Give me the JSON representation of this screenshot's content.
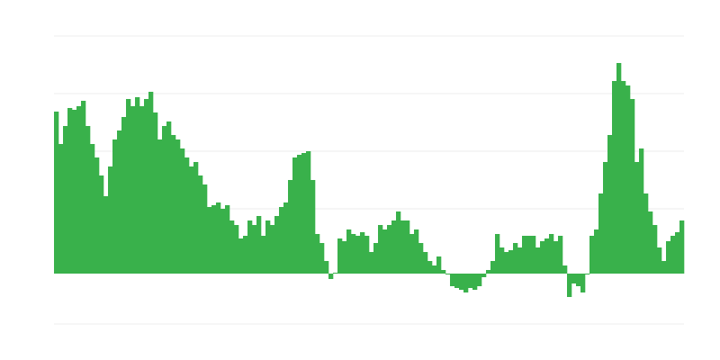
{
  "chart_data": {
    "type": "bar",
    "title": "",
    "xlabel": "",
    "ylabel": "",
    "ylim": [
      -56,
      264
    ],
    "grid": true,
    "gridlines": [
      -56,
      -8,
      8,
      72,
      136,
      200,
      264
    ],
    "legend": "none",
    "colors": {
      "bar": "#39b14b",
      "grid": "#ececec"
    },
    "values": [
      180,
      144,
      164,
      184,
      182,
      186,
      192,
      164,
      144,
      129,
      109,
      86,
      119,
      149,
      159,
      174,
      194,
      186,
      196,
      186,
      194,
      202,
      179,
      149,
      164,
      169,
      154,
      149,
      139,
      129,
      119,
      124,
      109,
      99,
      74,
      76,
      79,
      72,
      76,
      59,
      54,
      39,
      42,
      59,
      54,
      64,
      42,
      59,
      54,
      64,
      74,
      79,
      104,
      129,
      132,
      134,
      136,
      104,
      44,
      34,
      14,
      -6,
      1,
      39,
      36,
      49,
      44,
      42,
      46,
      42,
      24,
      34,
      54,
      49,
      54,
      59,
      69,
      59,
      59,
      44,
      49,
      34,
      24,
      14,
      9,
      19,
      4,
      -1,
      -14,
      -16,
      -18,
      -21,
      -16,
      -18,
      -14,
      -4,
      4,
      14,
      44,
      29,
      24,
      26,
      34,
      29,
      42,
      42,
      42,
      29,
      36,
      39,
      44,
      36,
      42,
      9,
      -26,
      -11,
      -14,
      -21,
      -1,
      42,
      49,
      89,
      124,
      154,
      214,
      234,
      214,
      209,
      194,
      124,
      139,
      89,
      69,
      54,
      29,
      14,
      36,
      42,
      46,
      59
    ]
  }
}
